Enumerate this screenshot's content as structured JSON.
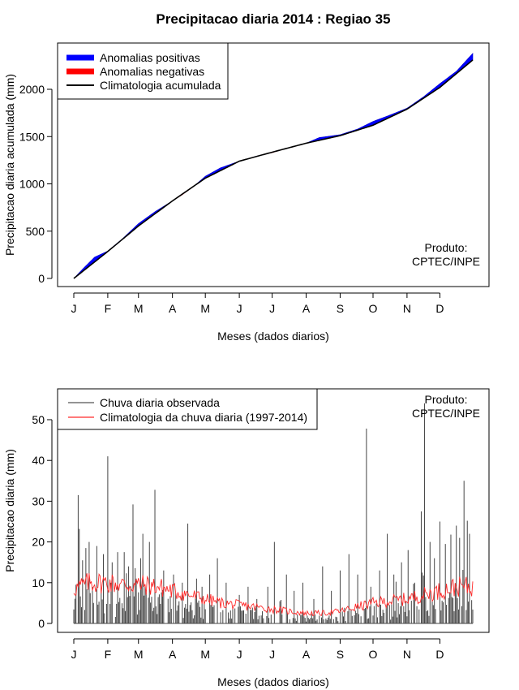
{
  "title": "Precipitacao diaria 2014 : Regiao 35",
  "months": [
    "J",
    "F",
    "M",
    "A",
    "M",
    "J",
    "J",
    "A",
    "S",
    "O",
    "N",
    "D"
  ],
  "chart_data": [
    {
      "type": "area",
      "ylabel": "Precipitacao diaria acumulada (mm)",
      "xlabel": "Meses (dados diarios)",
      "ylim": [
        0,
        2400
      ],
      "yticks": [
        "0",
        "500",
        "1000",
        "1500",
        "2000"
      ],
      "ytick_values": [
        0,
        500,
        1000,
        1500,
        2000
      ],
      "legend": {
        "position": "top-left",
        "entries": [
          {
            "label": "Anomalias positivas",
            "color": "#0000ff"
          },
          {
            "label": "Anomalias negativas",
            "color": "#ff0000"
          },
          {
            "label": "Climatologia acumulada",
            "color": "#000000"
          }
        ]
      },
      "note": [
        "Produto:",
        "CPTEC/INPE"
      ],
      "climatology_day": [
        1,
        32,
        60,
        91,
        121,
        152,
        182,
        213,
        244,
        274,
        305,
        335,
        365
      ],
      "climatology_mm": [
        0,
        285,
        555,
        820,
        1060,
        1240,
        1335,
        1430,
        1510,
        1620,
        1790,
        2020,
        2310
      ],
      "observed_day": [
        1,
        10,
        20,
        32,
        45,
        60,
        75,
        91,
        100,
        110,
        121,
        135,
        152,
        170,
        182,
        195,
        213,
        225,
        244,
        260,
        274,
        290,
        305,
        320,
        335,
        350,
        365
      ],
      "observed_mm": [
        0,
        110,
        225,
        290,
        415,
        580,
        705,
        820,
        885,
        970,
        1080,
        1170,
        1240,
        1300,
        1330,
        1375,
        1430,
        1490,
        1520,
        1580,
        1660,
        1730,
        1800,
        1920,
        2060,
        2190,
        2380
      ]
    },
    {
      "type": "bar",
      "ylabel": "Precipitacao diaria (mm)",
      "xlabel": "Meses (dados diarios)",
      "ylim": [
        0,
        55
      ],
      "yticks": [
        "0",
        "10",
        "20",
        "30",
        "40",
        "50"
      ],
      "ytick_values": [
        0,
        10,
        20,
        30,
        40,
        50
      ],
      "legend": {
        "position": "top-left",
        "entries": [
          {
            "label": "Chuva diaria observada",
            "color": "#555555"
          },
          {
            "label": "Climatologia da chuva diaria (1997-2014)",
            "color": "#ff0000"
          }
        ]
      },
      "note": [
        "Produto:",
        "CPTEC/INPE"
      ],
      "observed_peaks": [
        {
          "day": 3,
          "mm": 9.5
        },
        {
          "day": 5,
          "mm": 31.5
        },
        {
          "day": 6,
          "mm": 23.2
        },
        {
          "day": 9,
          "mm": 15.5
        },
        {
          "day": 12,
          "mm": 18.5
        },
        {
          "day": 15,
          "mm": 20
        },
        {
          "day": 22,
          "mm": 19
        },
        {
          "day": 28,
          "mm": 17
        },
        {
          "day": 32,
          "mm": 41
        },
        {
          "day": 36,
          "mm": 15
        },
        {
          "day": 41,
          "mm": 17.5
        },
        {
          "day": 47,
          "mm": 17.5
        },
        {
          "day": 51,
          "mm": 14
        },
        {
          "day": 55,
          "mm": 29.2
        },
        {
          "day": 58,
          "mm": 11
        },
        {
          "day": 62,
          "mm": 16
        },
        {
          "day": 64,
          "mm": 22
        },
        {
          "day": 70,
          "mm": 20
        },
        {
          "day": 75,
          "mm": 32.8
        },
        {
          "day": 83,
          "mm": 13
        },
        {
          "day": 92,
          "mm": 12
        },
        {
          "day": 100,
          "mm": 10
        },
        {
          "day": 105,
          "mm": 24.5
        },
        {
          "day": 113,
          "mm": 11
        },
        {
          "day": 118,
          "mm": 9
        },
        {
          "day": 125,
          "mm": 12
        },
        {
          "day": 132,
          "mm": 16
        },
        {
          "day": 140,
          "mm": 10
        },
        {
          "day": 152,
          "mm": 7
        },
        {
          "day": 160,
          "mm": 9
        },
        {
          "day": 168,
          "mm": 6
        },
        {
          "day": 178,
          "mm": 9
        },
        {
          "day": 184,
          "mm": 20
        },
        {
          "day": 195,
          "mm": 12
        },
        {
          "day": 202,
          "mm": 8
        },
        {
          "day": 210,
          "mm": 10
        },
        {
          "day": 220,
          "mm": 6
        },
        {
          "day": 228,
          "mm": 14
        },
        {
          "day": 236,
          "mm": 8
        },
        {
          "day": 244,
          "mm": 13
        },
        {
          "day": 252,
          "mm": 17
        },
        {
          "day": 260,
          "mm": 12
        },
        {
          "day": 268,
          "mm": 47.8
        },
        {
          "day": 272,
          "mm": 9
        },
        {
          "day": 280,
          "mm": 13
        },
        {
          "day": 287,
          "mm": 22
        },
        {
          "day": 293,
          "mm": 12
        },
        {
          "day": 300,
          "mm": 15
        },
        {
          "day": 306,
          "mm": 18
        },
        {
          "day": 312,
          "mm": 10
        },
        {
          "day": 318,
          "mm": 27.5
        },
        {
          "day": 321,
          "mm": 54
        },
        {
          "day": 326,
          "mm": 20
        },
        {
          "day": 330,
          "mm": 16
        },
        {
          "day": 335,
          "mm": 25
        },
        {
          "day": 340,
          "mm": 19.5
        },
        {
          "day": 345,
          "mm": 21.8
        },
        {
          "day": 350,
          "mm": 24
        },
        {
          "day": 353,
          "mm": 21
        },
        {
          "day": 357,
          "mm": 35
        },
        {
          "day": 360,
          "mm": 25.2
        },
        {
          "day": 362,
          "mm": 22
        }
      ],
      "climatology_day": [
        1,
        15,
        32,
        46,
        60,
        75,
        91,
        106,
        121,
        136,
        152,
        167,
        182,
        197,
        213,
        228,
        244,
        259,
        274,
        289,
        305,
        320,
        335,
        350,
        365
      ],
      "climatology_mm": [
        8.5,
        10,
        10,
        9.5,
        9.5,
        9.2,
        8,
        7,
        6,
        5,
        4.5,
        4,
        3.5,
        3,
        2.5,
        2.5,
        3,
        4,
        5,
        5.5,
        6,
        7,
        8,
        9,
        9
      ]
    }
  ]
}
